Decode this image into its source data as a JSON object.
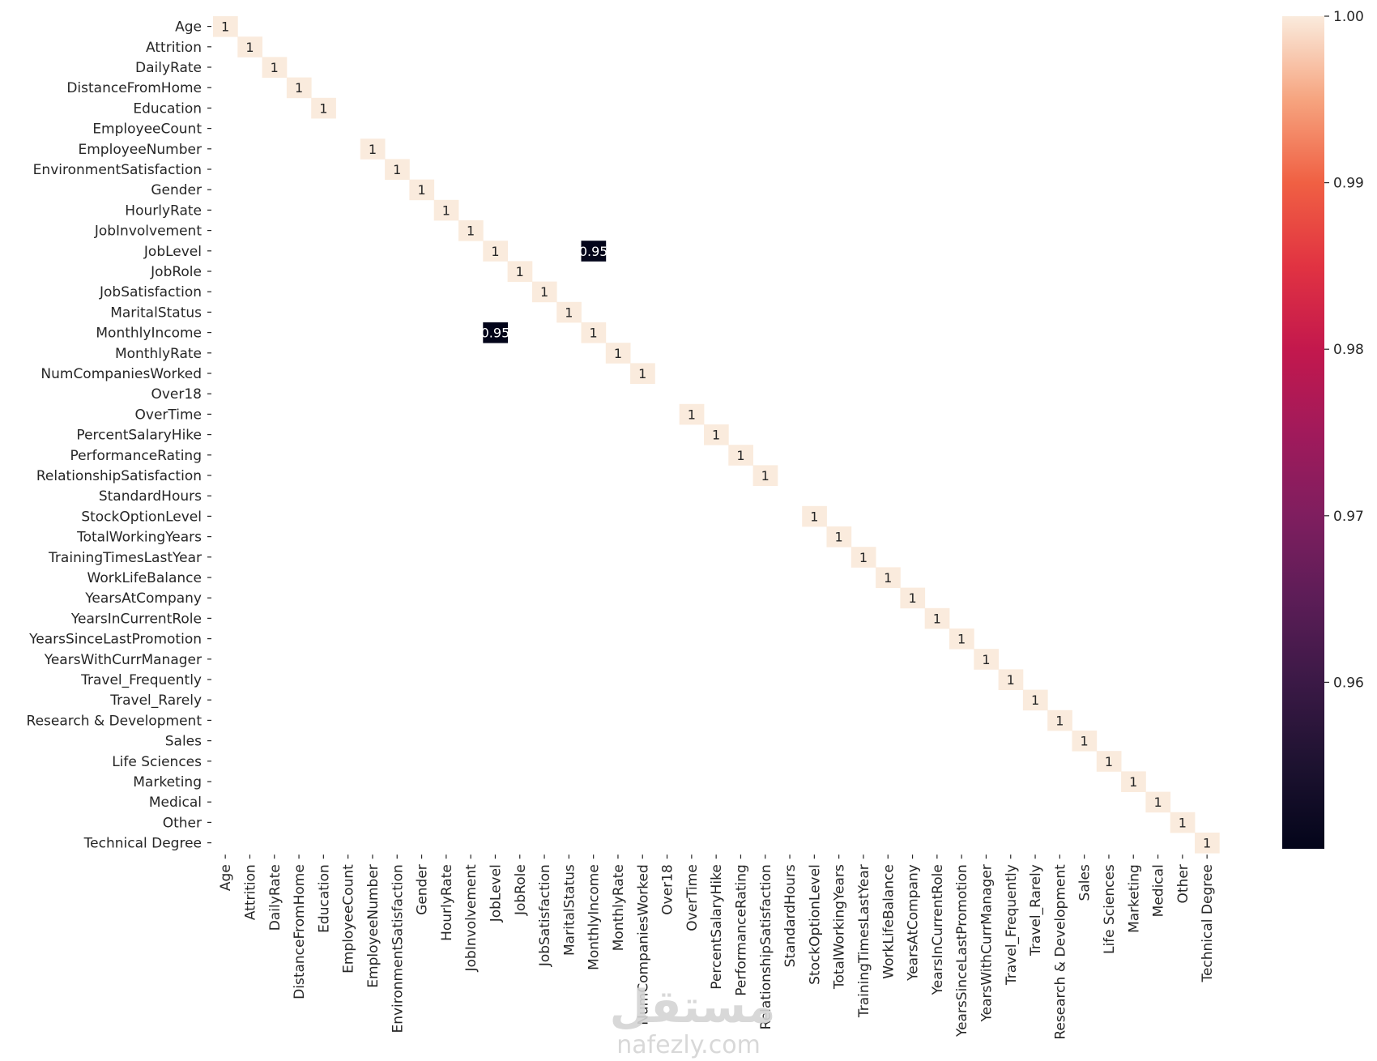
{
  "chart_data": {
    "type": "heatmap",
    "title": "",
    "xlabel": "",
    "ylabel": "",
    "labels": [
      "Age",
      "Attrition",
      "DailyRate",
      "DistanceFromHome",
      "Education",
      "EmployeeCount",
      "EmployeeNumber",
      "EnvironmentSatisfaction",
      "Gender",
      "HourlyRate",
      "JobInvolvement",
      "JobLevel",
      "JobRole",
      "JobSatisfaction",
      "MaritalStatus",
      "MonthlyIncome",
      "MonthlyRate",
      "NumCompaniesWorked",
      "Over18",
      "OverTime",
      "PercentSalaryHike",
      "PerformanceRating",
      "RelationshipSatisfaction",
      "StandardHours",
      "StockOptionLevel",
      "TotalWorkingYears",
      "TrainingTimesLastYear",
      "WorkLifeBalance",
      "YearsAtCompany",
      "YearsInCurrentRole",
      "YearsSinceLastPromotion",
      "YearsWithCurrManager",
      "Travel_Frequently",
      "Travel_Rarely",
      "Research & Development",
      "Sales",
      "Life Sciences",
      "Marketing",
      "Medical",
      "Other",
      "Technical Degree"
    ],
    "empty_labels": [
      "EmployeeCount",
      "Over18",
      "StandardHours"
    ],
    "off_diagonal": [
      {
        "row": "JobLevel",
        "col": "MonthlyIncome",
        "value": 0.95,
        "text": "0.95"
      },
      {
        "row": "MonthlyIncome",
        "col": "JobLevel",
        "value": 0.95,
        "text": "0.95"
      }
    ],
    "diagonal_value": 1,
    "diagonal_text": "1",
    "colorbar": {
      "min": 0.95,
      "max": 1.0,
      "ticks": [
        "0.96",
        "0.97",
        "0.98",
        "0.99",
        "1.00"
      ],
      "tick_values": [
        0.96,
        0.97,
        0.98,
        0.99,
        1.0
      ],
      "colormap": "rocket"
    },
    "annotations": true,
    "grid": false
  },
  "watermark": {
    "text_top": "مستقل",
    "text_bottom": "nafezly.com"
  }
}
